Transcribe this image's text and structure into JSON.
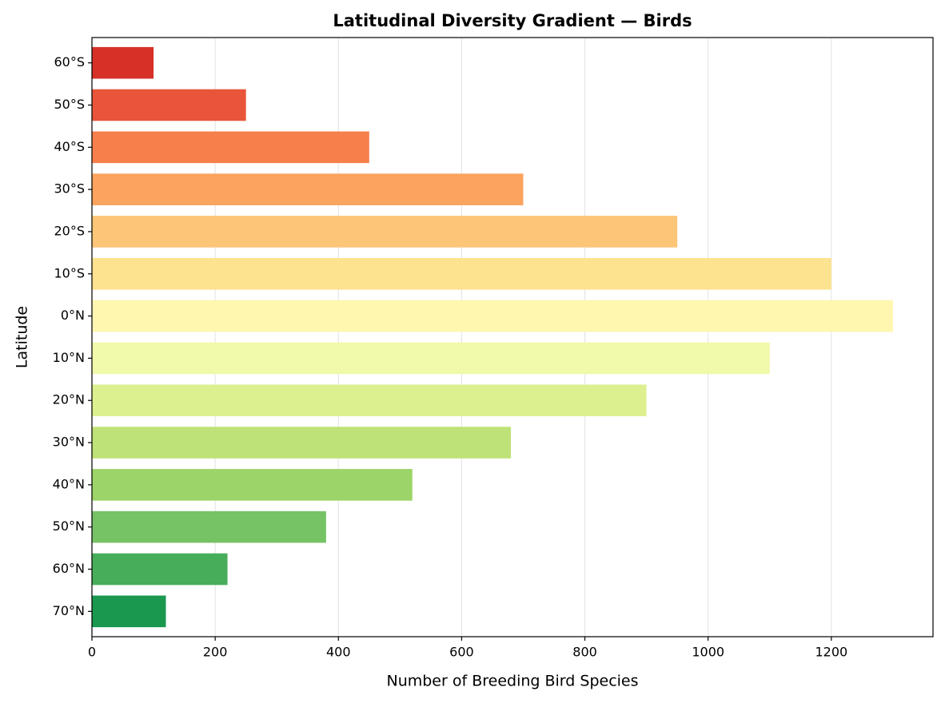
{
  "chart_data": {
    "type": "barh",
    "title": "Latitudinal Diversity Gradient — Birds",
    "xlabel": "Number of Breeding Bird Species",
    "ylabel": "Latitude",
    "categories": [
      "60°S",
      "50°S",
      "40°S",
      "30°S",
      "20°S",
      "10°S",
      "0°N",
      "10°N",
      "20°N",
      "30°N",
      "40°N",
      "50°N",
      "60°N",
      "70°N"
    ],
    "values": [
      100,
      250,
      450,
      700,
      950,
      1200,
      1300,
      1100,
      900,
      680,
      520,
      380,
      220,
      120
    ],
    "colors": [
      "#d73027",
      "#e8553a",
      "#f67f4b",
      "#fca35e",
      "#fdc578",
      "#fde28f",
      "#fff6b0",
      "#f1f9aa",
      "#dcf08f",
      "#bfe278",
      "#9cd469",
      "#75c365",
      "#47ad5b",
      "#1a9850"
    ],
    "xlim": [
      0,
      1365
    ],
    "xticks": [
      0,
      200,
      400,
      600,
      800,
      1000,
      1200
    ],
    "grid": true
  }
}
